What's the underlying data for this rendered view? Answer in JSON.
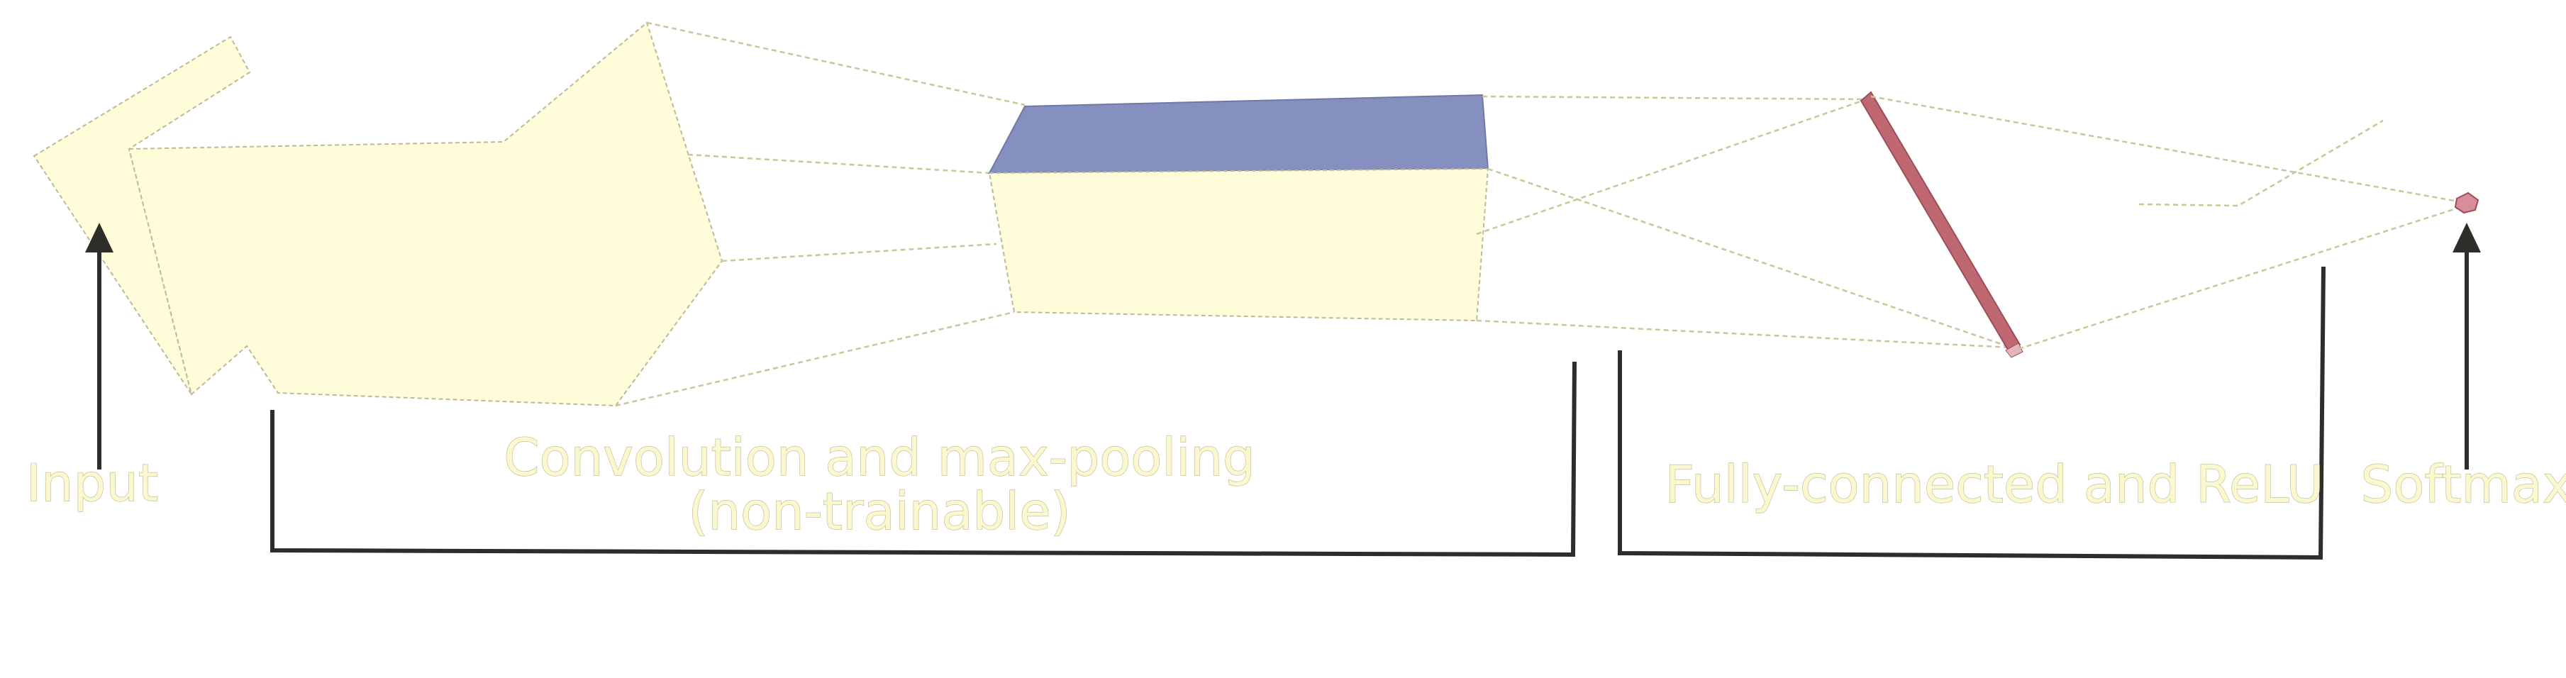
{
  "diagram": {
    "labels": {
      "input": "Input",
      "conv_line1": "Convolution and max-pooling",
      "conv_line2": "(non-trainable)",
      "fc": "Fully-connected and ReLU",
      "softmax": "Softmax"
    },
    "colors": {
      "volume_fill": "#fffcd9",
      "volume_edge": "#bdbb96",
      "top_face": "#8590c0",
      "fc_layer": "#c06872",
      "connector": "#c9c69a",
      "bracket": "#2d2d2a",
      "label_text": "#fbf8cf"
    }
  }
}
